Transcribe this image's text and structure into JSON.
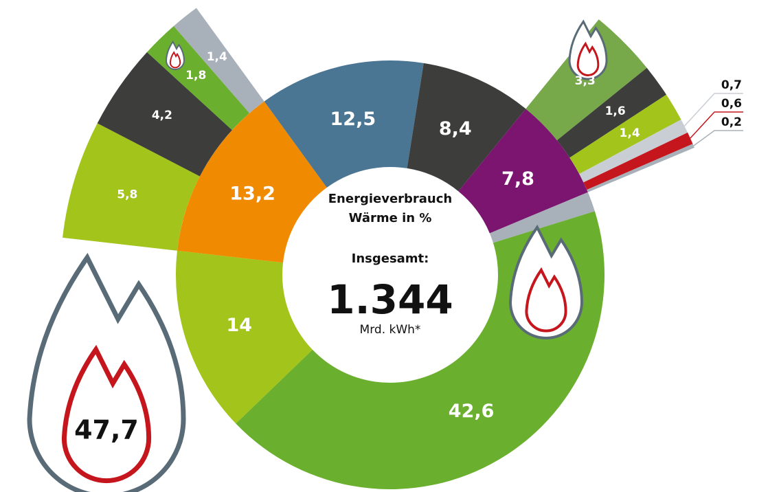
{
  "chart_data": {
    "type": "donut",
    "title": [
      "Energieverbrauch",
      "Wärme in %"
    ],
    "subtitle": "Insgesamt:",
    "total": {
      "value": 1344,
      "label": "1.344"
    },
    "total_unit": "Mrd. kWh*",
    "values": [
      12.5,
      8.4,
      7.8,
      1.5,
      42.6,
      14,
      13.2
    ],
    "value_labels": [
      "12,5",
      "8,4",
      "7,8",
      null,
      "42,6",
      "14",
      "13,2"
    ],
    "colors": [
      "#4a7593",
      "#3d3d3b",
      "#7b1570",
      "#a8b0b9",
      "#6aaf2e",
      "#a3c41a",
      "#f08a00"
    ],
    "outer_left": {
      "values": [
        5.8,
        4.2,
        1.8,
        1.4
      ],
      "value_labels": [
        "5,8",
        "4,2",
        "1,8",
        "1,4"
      ],
      "colors": [
        "#a3c41a",
        "#3d3d3b",
        "#6aaf2e",
        "#a8b0b9"
      ]
    },
    "outer_right": {
      "values": [
        3.3,
        1.6,
        1.4,
        0.7,
        0.6,
        0.2
      ],
      "value_labels": [
        "3,3",
        "1,6",
        "1,4",
        "0,7",
        "0,6",
        "0,2"
      ],
      "colors": [
        "#77a84a",
        "#3d3d3b",
        "#a3c41a",
        "#c9ced4",
        "#c4161c",
        "#a8b0b9"
      ]
    },
    "annotation": {
      "value": 47.7,
      "label": "47,7"
    }
  }
}
